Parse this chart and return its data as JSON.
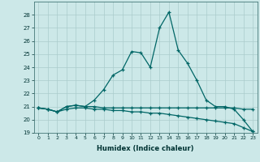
{
  "xlabel": "Humidex (Indice chaleur)",
  "x": [
    0,
    1,
    2,
    3,
    4,
    5,
    6,
    7,
    8,
    9,
    10,
    11,
    12,
    13,
    14,
    15,
    16,
    17,
    18,
    19,
    20,
    21,
    22,
    23
  ],
  "line1": [
    20.9,
    20.8,
    20.6,
    21.0,
    21.1,
    21.0,
    21.0,
    20.9,
    20.9,
    20.9,
    20.9,
    20.9,
    20.9,
    20.9,
    20.9,
    20.9,
    20.9,
    20.9,
    20.9,
    20.9,
    20.9,
    20.9,
    20.8,
    20.8
  ],
  "line2": [
    20.9,
    20.8,
    20.6,
    21.0,
    21.1,
    21.0,
    21.5,
    22.3,
    23.4,
    23.8,
    25.2,
    25.1,
    24.0,
    27.0,
    28.2,
    25.3,
    24.3,
    23.0,
    21.5,
    21.0,
    21.0,
    20.8,
    20.0,
    19.1
  ],
  "line3": [
    20.9,
    20.8,
    20.6,
    20.8,
    20.9,
    20.9,
    20.8,
    20.8,
    20.7,
    20.7,
    20.6,
    20.6,
    20.5,
    20.5,
    20.4,
    20.3,
    20.2,
    20.1,
    20.0,
    19.9,
    19.8,
    19.7,
    19.4,
    19.1
  ],
  "bg_color": "#cce8e8",
  "grid_color": "#aacccc",
  "line_color": "#006666",
  "ylim": [
    19,
    29
  ],
  "yticks": [
    19,
    20,
    21,
    22,
    23,
    24,
    25,
    26,
    27,
    28
  ],
  "xticks": [
    0,
    1,
    2,
    3,
    4,
    5,
    6,
    7,
    8,
    9,
    10,
    11,
    12,
    13,
    14,
    15,
    16,
    17,
    18,
    19,
    20,
    21,
    22,
    23
  ]
}
